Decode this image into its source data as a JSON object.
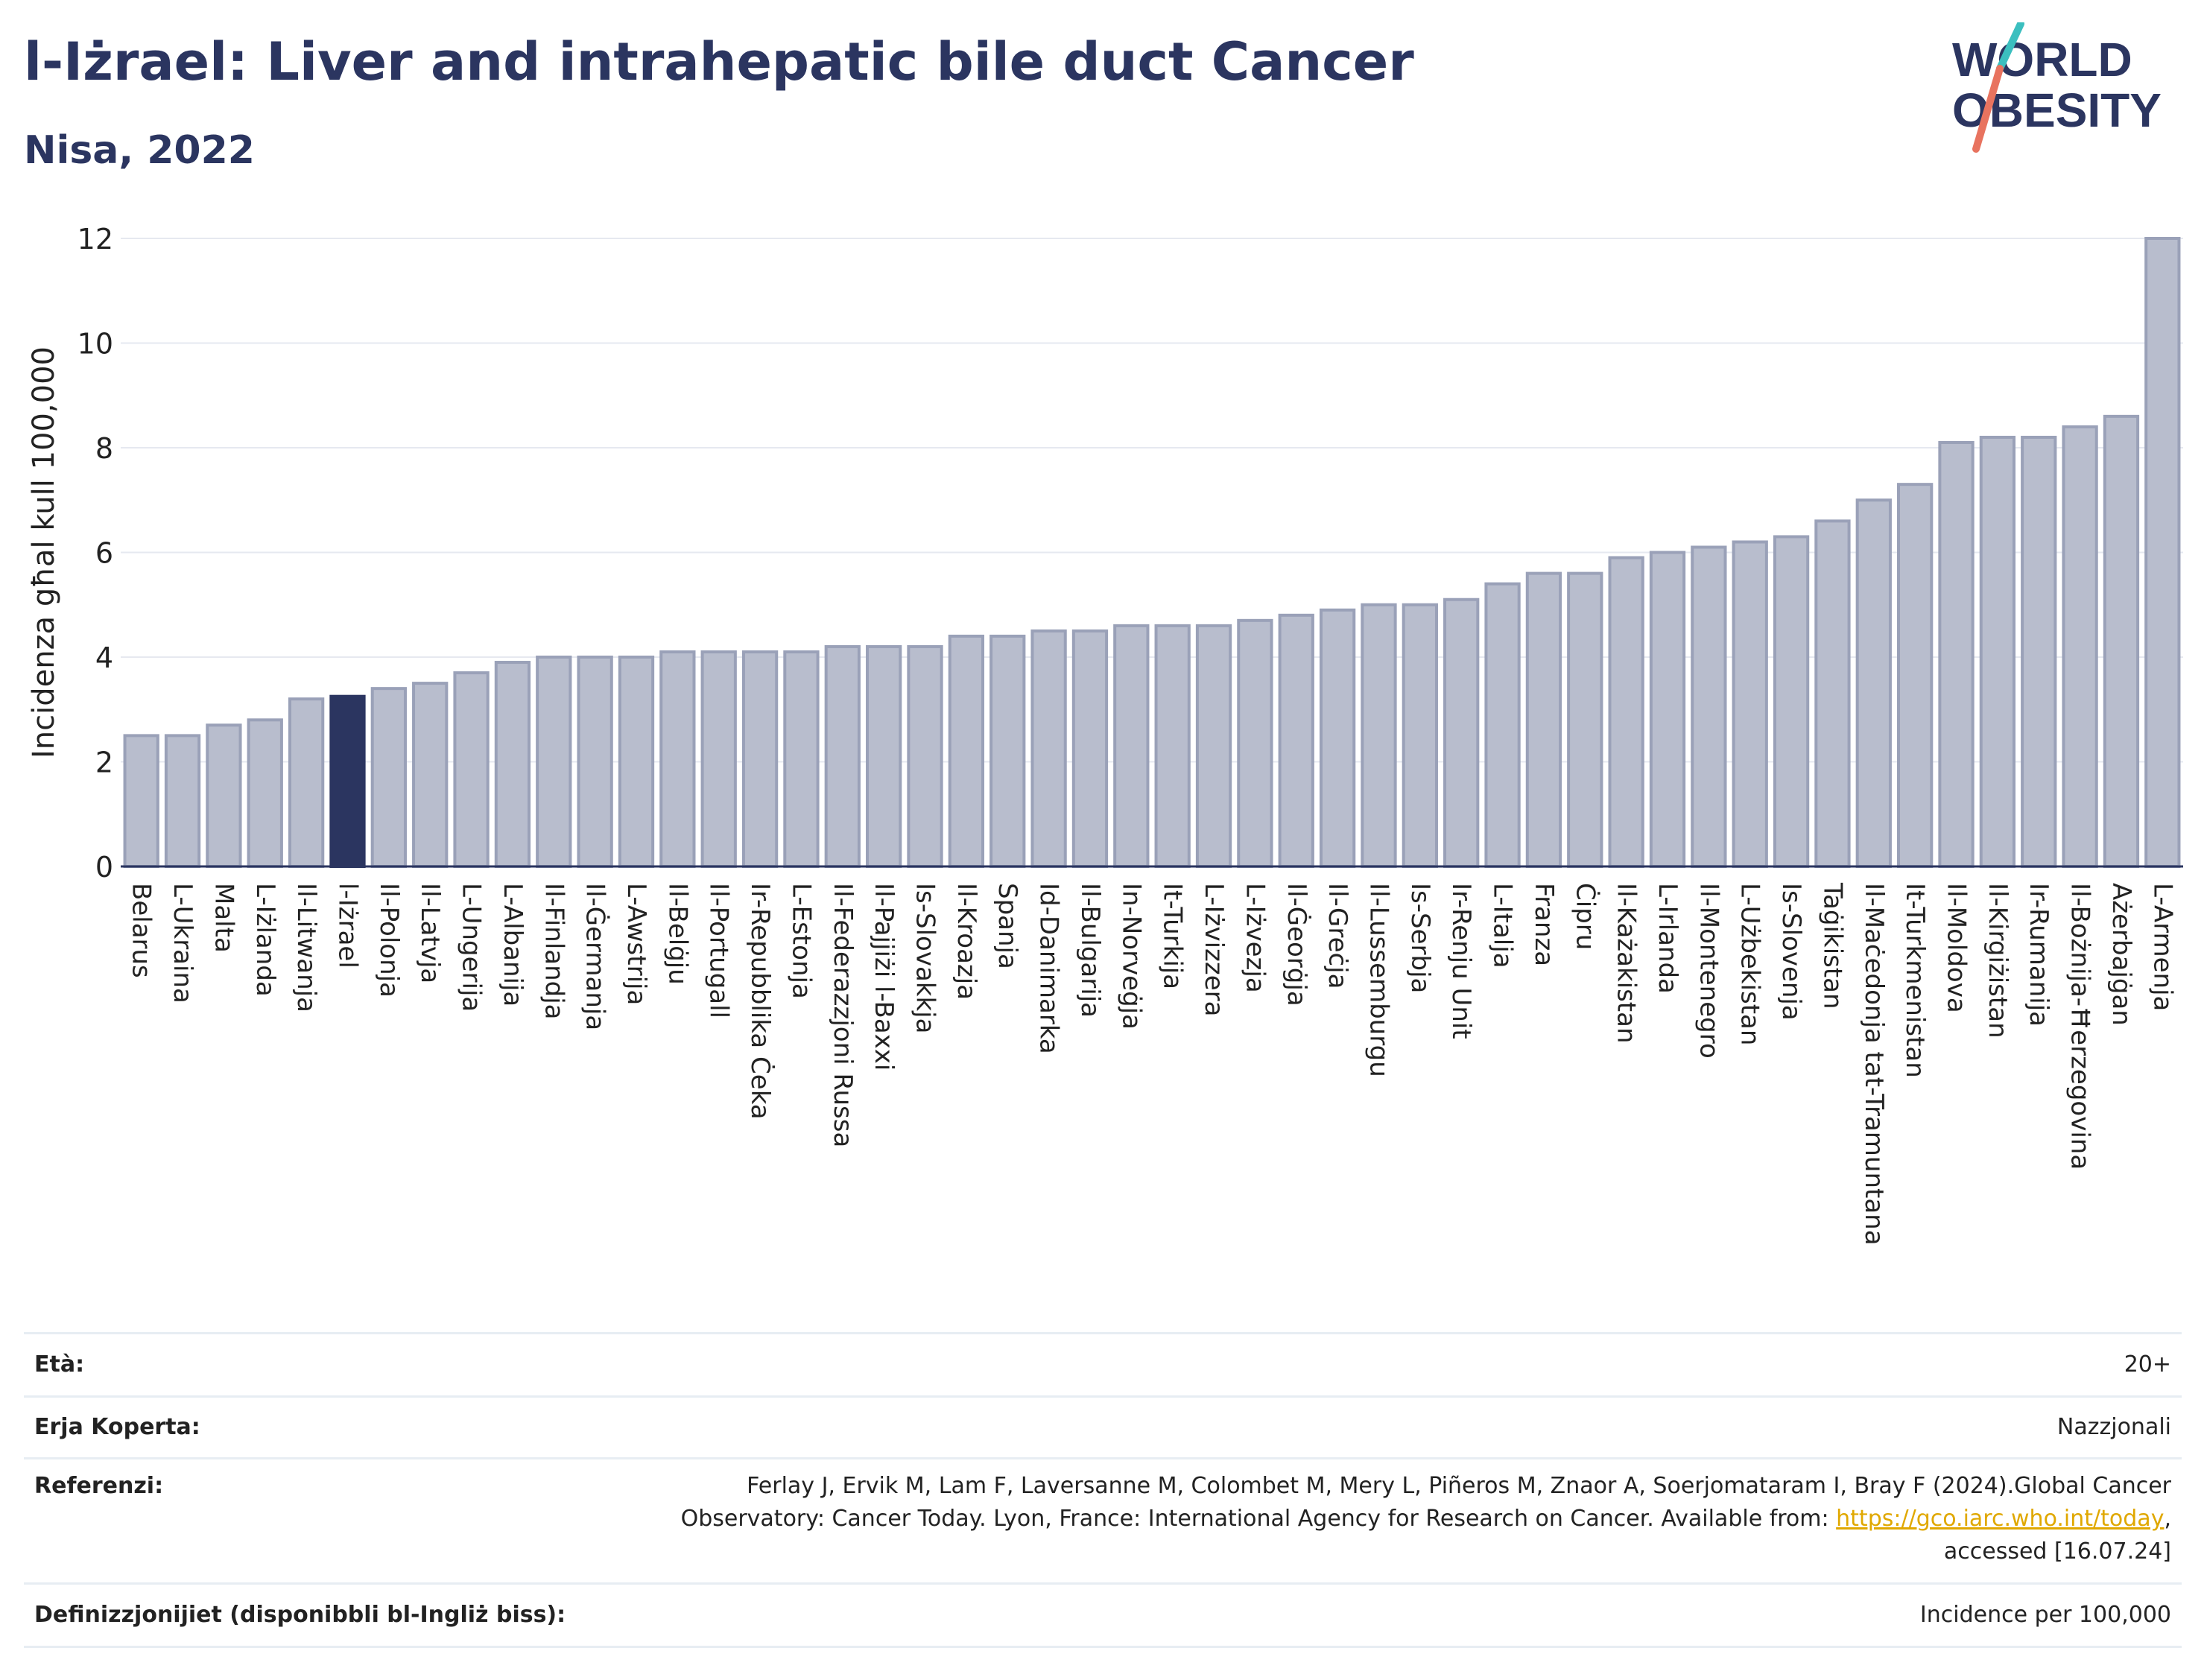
{
  "header": {
    "title": "l-Iżrael: Liver and intrahepatic bile duct Cancer",
    "subtitle": "Nisa, 2022"
  },
  "logo": {
    "line1": "WORLD",
    "line2": "OBESITY"
  },
  "colors": {
    "highlight_bar": "#2b3560",
    "other_bar": "#b8bdcd",
    "other_bar_stroke": "#9aa1b8",
    "text": "#2b3560",
    "link": "#e0a800",
    "logo_slash_teal": "#3bbfbf",
    "logo_slash_coral": "#e8735f"
  },
  "chart_data": {
    "type": "bar",
    "ylabel": "Incidenza għal kull 100,000",
    "ylim": [
      0,
      12
    ],
    "yticks": [
      0,
      2,
      4,
      6,
      8,
      10,
      12
    ],
    "grid": true,
    "highlight": "l-Iżrael",
    "categories": [
      "Belarus",
      "L-Ukraina",
      "Malta",
      "L-Iżlanda",
      "Il-Litwanja",
      "l-Iżrael",
      "Il-Polonja",
      "Il-Latvja",
      "L-Ungerija",
      "L-Albanija",
      "Il-Finlandja",
      "Il-Ġermanja",
      "L-Awstrija",
      "Il-Belġju",
      "Il-Portugall",
      "Ir-Repubblika Ċeka",
      "L-Estonja",
      "Il-Federazzjoni Russa",
      "Il-Pajjiżi l-Baxxi",
      "Is-Slovakkja",
      "Il-Kroazja",
      "Spanja",
      "Id-Danimarka",
      "Il-Bulgarija",
      "In-Norveġja",
      "It-Turkija",
      "L-Iżvizzera",
      "L-Iżvezja",
      "Il-Ġeorġja",
      "Il-Greċja",
      "Il-Lussemburgu",
      "Is-Serbja",
      "Ir-Renju Unit",
      "L-Italja",
      "Franza",
      "Ċipru",
      "Il-Każakistan",
      "L-Irlanda",
      "Il-Montenegro",
      "L-Użbekistan",
      "Is-Slovenja",
      "Taġikistan",
      "Il-Maċedonja tat-Tramuntana",
      "It-Turkmenistan",
      "Il-Moldova",
      "Il-Kirgiżistan",
      "Ir-Rumanija",
      "Il-Bożnija-Ħerzegovina",
      "Ażerbajġan",
      "L-Armenja"
    ],
    "values": [
      2.5,
      2.5,
      2.7,
      2.8,
      3.2,
      3.25,
      3.4,
      3.5,
      3.7,
      3.9,
      4.0,
      4.0,
      4.0,
      4.1,
      4.1,
      4.1,
      4.1,
      4.2,
      4.2,
      4.2,
      4.4,
      4.4,
      4.5,
      4.5,
      4.6,
      4.6,
      4.6,
      4.7,
      4.8,
      4.9,
      5.0,
      5.0,
      5.1,
      5.4,
      5.6,
      5.6,
      5.9,
      6.0,
      6.1,
      6.2,
      6.3,
      6.6,
      7.0,
      7.3,
      8.1,
      8.2,
      8.2,
      8.4,
      8.6,
      12.0
    ]
  },
  "meta": {
    "age_label": "Età:",
    "age_value": "20+",
    "coverage_label": "Erja Koperta:",
    "coverage_value": "Nazzjonali",
    "references_label": "Referenzi:",
    "references_line1": "Ferlay J, Ervik M, Lam F, Laversanne M, Colombet M, Mery L, Piñeros M, Znaor A, Soerjomataram I, Bray F (2024).Global Cancer",
    "references_line2": "Observatory: Cancer Today. Lyon, France: International Agency for Research on Cancer. Available from: ",
    "references_link": "https://gco.iarc.who.int/today",
    "references_line2_end": ",",
    "references_line3": "accessed [16.07.24]",
    "definitions_label": "Definizzjonijiet (disponibbli bl-Ingliż biss):",
    "definitions_value": "Incidence per 100,000"
  }
}
